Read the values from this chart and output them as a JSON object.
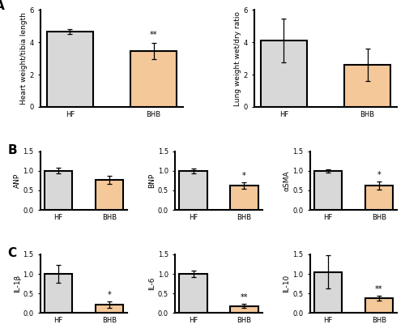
{
  "panel_A": {
    "left": {
      "categories": [
        "HF",
        "BHB"
      ],
      "values": [
        4.65,
        3.45
      ],
      "errors": [
        0.15,
        0.5
      ],
      "ylabel": "Heart weight/tibia length",
      "ylim": [
        0,
        6
      ],
      "yticks": [
        0,
        2,
        4,
        6
      ],
      "bar_colors": [
        "#d8d8d8",
        "#f5c89a"
      ],
      "significance": {
        "BHB": "**"
      }
    },
    "right": {
      "categories": [
        "HF",
        "BHB"
      ],
      "values": [
        4.1,
        2.6
      ],
      "errors": [
        1.35,
        1.0
      ],
      "ylabel": "Lung weight wet/dry ratio",
      "ylim": [
        0,
        6
      ],
      "yticks": [
        0,
        2,
        4,
        6
      ],
      "bar_colors": [
        "#d8d8d8",
        "#f5c89a"
      ],
      "significance": {}
    }
  },
  "panel_B": {
    "ANP": {
      "categories": [
        "HF",
        "BHB"
      ],
      "values": [
        1.0,
        0.77
      ],
      "errors": [
        0.07,
        0.1
      ],
      "ylabel": "ANP",
      "ylim": [
        0,
        1.5
      ],
      "yticks": [
        0.0,
        0.5,
        1.0,
        1.5
      ],
      "ytick_labels": [
        "0.0",
        "0.5",
        "1.0",
        "1.5"
      ],
      "bar_colors": [
        "#d8d8d8",
        "#f5c89a"
      ],
      "significance": {}
    },
    "BNP": {
      "categories": [
        "HF",
        "BHB"
      ],
      "values": [
        1.0,
        0.63
      ],
      "errors": [
        0.06,
        0.08
      ],
      "ylabel": "BNP",
      "ylim": [
        0,
        1.5
      ],
      "yticks": [
        0.0,
        0.5,
        1.0,
        1.5
      ],
      "ytick_labels": [
        "0.0",
        "0.5",
        "1.0",
        "1.5"
      ],
      "bar_colors": [
        "#d8d8d8",
        "#f5c89a"
      ],
      "significance": {
        "BHB": "*"
      }
    },
    "aSMA": {
      "categories": [
        "HF",
        "BHB"
      ],
      "values": [
        1.0,
        0.62
      ],
      "errors": [
        0.04,
        0.1
      ],
      "ylabel": "αSMA",
      "ylim": [
        0,
        1.5
      ],
      "yticks": [
        0.0,
        0.5,
        1.0,
        1.5
      ],
      "ytick_labels": [
        "0.0",
        "0.5",
        "1.0",
        "1.5"
      ],
      "bar_colors": [
        "#d8d8d8",
        "#f5c89a"
      ],
      "significance": {
        "BHB": "*"
      }
    }
  },
  "panel_C": {
    "IL1b": {
      "categories": [
        "HF",
        "BHB"
      ],
      "values": [
        1.0,
        0.22
      ],
      "errors": [
        0.22,
        0.08
      ],
      "ylabel": "IL-1β",
      "ylim": [
        0,
        1.5
      ],
      "yticks": [
        0.0,
        0.5,
        1.0,
        1.5
      ],
      "ytick_labels": [
        "0.0",
        "0.5",
        "1.0",
        "1.5"
      ],
      "bar_colors": [
        "#d8d8d8",
        "#f5c89a"
      ],
      "significance": {
        "BHB": "*"
      }
    },
    "IL6": {
      "categories": [
        "HF",
        "BHB"
      ],
      "values": [
        1.0,
        0.18
      ],
      "errors": [
        0.08,
        0.05
      ],
      "ylabel": "IL-6",
      "ylim": [
        0,
        1.5
      ],
      "yticks": [
        0.0,
        0.5,
        1.0,
        1.5
      ],
      "ytick_labels": [
        "0.0",
        "0.5",
        "1.0",
        "1.5"
      ],
      "bar_colors": [
        "#d8d8d8",
        "#f5c89a"
      ],
      "significance": {
        "BHB": "**"
      }
    },
    "IL10": {
      "categories": [
        "HF",
        "BHB"
      ],
      "values": [
        1.05,
        0.38
      ],
      "errors": [
        0.42,
        0.06
      ],
      "ylabel": "IL-10",
      "ylim": [
        0,
        1.5
      ],
      "yticks": [
        0.0,
        0.5,
        1.0,
        1.5
      ],
      "ytick_labels": [
        "0.0",
        "0.5",
        "1.0",
        "1.5"
      ],
      "bar_colors": [
        "#d8d8d8",
        "#f5c89a"
      ],
      "significance": {
        "BHB": "**"
      }
    }
  },
  "label_fontsize": 6.5,
  "tick_fontsize": 6,
  "sig_fontsize": 7,
  "bar_width": 0.55,
  "bar_linewidth": 1.5,
  "capsize": 2.5,
  "elinewidth": 0.9,
  "spine_linewidth": 1.5
}
